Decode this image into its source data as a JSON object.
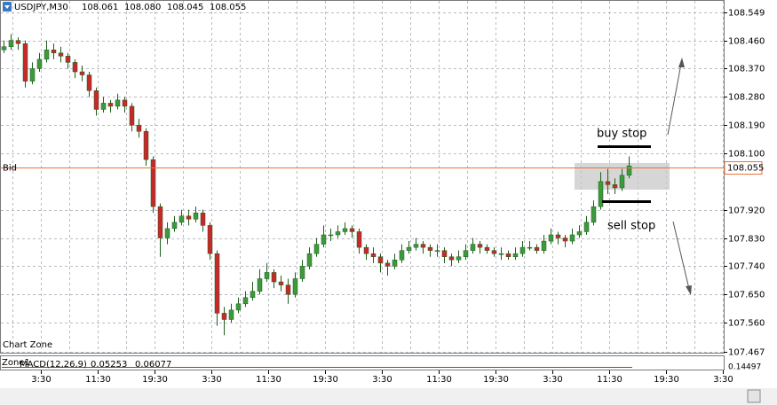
{
  "chart_data": {
    "type": "candlestick",
    "symbol": "USDJPY,M30",
    "header_values": [
      {
        "value": 108.061,
        "label": "108.061"
      },
      {
        "value": 108.08,
        "label": "108.080"
      },
      {
        "value": 108.045,
        "label": "108.045"
      },
      {
        "value": 108.055,
        "label": "108.055"
      }
    ],
    "bid_label": "Bid",
    "bid": 108.055,
    "bid_color": "#e8733a",
    "up_color": "#3c9a3c",
    "down_color": "#c8282a",
    "wick_color": "#1f5f1f",
    "zone_label": "Chart Zone",
    "annotations": {
      "buy_stop": "buy stop",
      "sell_stop": "sell stop"
    },
    "ylim": [
      107.464,
      108.589
    ],
    "yticks": [
      108.549,
      {
        "value": 108.46,
        "label": "108.460"
      },
      {
        "value": 108.37,
        "label": "108.370"
      },
      {
        "value": 108.28,
        "label": "108.280"
      },
      {
        "value": 108.19,
        "label": "108.190"
      },
      {
        "value": 108.1,
        "label": "108.100"
      },
      {
        "value": 107.92,
        "label": "107.920"
      },
      {
        "value": 107.83,
        "label": "107.830"
      },
      {
        "value": 107.74,
        "label": "107.740"
      },
      {
        "value": 107.65,
        "label": "107.650"
      },
      {
        "value": 107.56,
        "label": "107.560"
      },
      107.467
    ],
    "grid": true,
    "time_labels": [
      "3:30",
      "11:30",
      "19:30",
      "3:30",
      "11:30",
      "19:30",
      "3:30",
      "11:30",
      "19:30",
      "3:30",
      "11:30",
      "19:30",
      "3:30"
    ],
    "open": [
      108.43,
      108.44,
      108.46,
      108.45,
      108.33,
      108.37,
      108.4,
      108.43,
      108.42,
      108.41,
      108.39,
      108.36,
      108.35,
      108.3,
      108.24,
      108.26,
      108.25,
      108.27,
      108.25,
      108.19,
      108.17,
      108.08,
      107.93,
      107.83,
      107.86,
      107.88,
      107.9,
      107.89,
      107.91,
      107.87,
      107.78,
      107.59,
      107.57,
      107.6,
      107.62,
      107.64,
      107.66,
      107.7,
      107.72,
      107.69,
      107.68,
      107.65,
      107.7,
      107.74,
      107.78,
      107.81,
      107.84,
      107.84,
      107.85,
      107.86,
      107.85,
      107.8,
      107.78,
      107.77,
      107.75,
      107.74,
      107.76,
      107.79,
      107.8,
      107.81,
      107.8,
      107.79,
      107.79,
      107.77,
      107.76,
      107.77,
      107.79,
      107.81,
      107.8,
      107.79,
      107.78,
      107.78,
      107.77,
      107.78,
      107.8,
      107.8,
      107.79,
      107.82,
      107.84,
      107.83,
      107.82,
      107.84,
      107.85,
      107.88,
      107.93,
      108.01,
      108.0,
      107.99,
      108.03
    ],
    "high": [
      108.46,
      108.48,
      108.47,
      108.46,
      108.39,
      108.42,
      108.46,
      108.45,
      108.44,
      108.42,
      108.4,
      108.38,
      108.36,
      108.31,
      108.28,
      108.27,
      108.29,
      108.28,
      108.26,
      108.21,
      108.18,
      108.09,
      107.94,
      107.88,
      107.9,
      107.92,
      107.92,
      107.93,
      107.92,
      107.88,
      107.79,
      107.61,
      107.62,
      107.64,
      107.66,
      107.69,
      107.73,
      107.75,
      107.73,
      107.71,
      107.7,
      107.72,
      107.76,
      107.8,
      107.83,
      107.87,
      107.86,
      107.87,
      107.88,
      107.87,
      107.86,
      107.81,
      107.8,
      107.78,
      107.76,
      107.78,
      107.81,
      107.82,
      107.83,
      107.82,
      107.81,
      107.81,
      107.8,
      107.78,
      107.79,
      107.81,
      107.83,
      107.82,
      107.81,
      107.8,
      107.8,
      107.79,
      107.8,
      107.82,
      107.82,
      107.81,
      107.84,
      107.86,
      107.85,
      107.84,
      107.86,
      107.87,
      107.9,
      107.95,
      108.04,
      108.05,
      108.02,
      108.05,
      108.09
    ],
    "low": [
      108.42,
      108.43,
      108.43,
      108.31,
      108.32,
      108.36,
      108.39,
      108.4,
      108.39,
      108.37,
      108.34,
      108.33,
      108.28,
      108.22,
      108.23,
      108.23,
      108.24,
      108.23,
      108.17,
      108.15,
      108.06,
      107.91,
      107.77,
      107.81,
      107.85,
      107.87,
      107.87,
      107.88,
      107.85,
      107.76,
      107.55,
      107.52,
      107.56,
      107.59,
      107.61,
      107.63,
      107.65,
      107.69,
      107.67,
      107.66,
      107.62,
      107.64,
      107.69,
      107.73,
      107.77,
      107.8,
      107.82,
      107.83,
      107.84,
      107.83,
      107.78,
      107.76,
      107.75,
      107.72,
      107.71,
      107.73,
      107.75,
      107.78,
      107.79,
      107.78,
      107.77,
      107.77,
      107.75,
      107.74,
      107.75,
      107.76,
      107.78,
      107.78,
      107.78,
      107.77,
      107.76,
      107.76,
      107.76,
      107.77,
      107.79,
      107.78,
      107.78,
      107.81,
      107.81,
      107.8,
      107.81,
      107.83,
      107.84,
      107.87,
      107.92,
      107.97,
      107.97,
      107.98,
      108.02
    ],
    "close": [
      108.44,
      108.46,
      108.45,
      108.33,
      108.37,
      108.4,
      108.43,
      108.42,
      108.41,
      108.39,
      108.36,
      108.35,
      108.3,
      108.24,
      108.26,
      108.25,
      108.27,
      108.25,
      108.19,
      108.17,
      108.08,
      107.93,
      107.83,
      107.86,
      107.88,
      107.9,
      107.89,
      107.91,
      107.87,
      107.78,
      107.59,
      107.57,
      107.6,
      107.62,
      107.64,
      107.66,
      107.7,
      107.72,
      107.69,
      107.68,
      107.65,
      107.7,
      107.74,
      107.78,
      107.81,
      107.84,
      107.84,
      107.85,
      107.86,
      107.85,
      107.8,
      107.78,
      107.77,
      107.75,
      107.74,
      107.76,
      107.79,
      107.8,
      107.81,
      107.8,
      107.79,
      107.79,
      107.77,
      107.76,
      107.77,
      107.79,
      107.81,
      107.8,
      107.79,
      107.78,
      107.78,
      107.77,
      107.78,
      107.8,
      107.8,
      107.79,
      107.82,
      107.84,
      107.83,
      107.82,
      107.84,
      107.85,
      107.88,
      107.93,
      108.01,
      108.0,
      107.99,
      108.03,
      108.06
    ],
    "subwindow": {
      "zone": "Zone1",
      "indicator": "MACD(12,26,9)",
      "values": [
        0.05253,
        0.06077
      ],
      "value_colors": [
        "#c8282a",
        "#000000"
      ],
      "scale_label": 0.14497
    }
  }
}
